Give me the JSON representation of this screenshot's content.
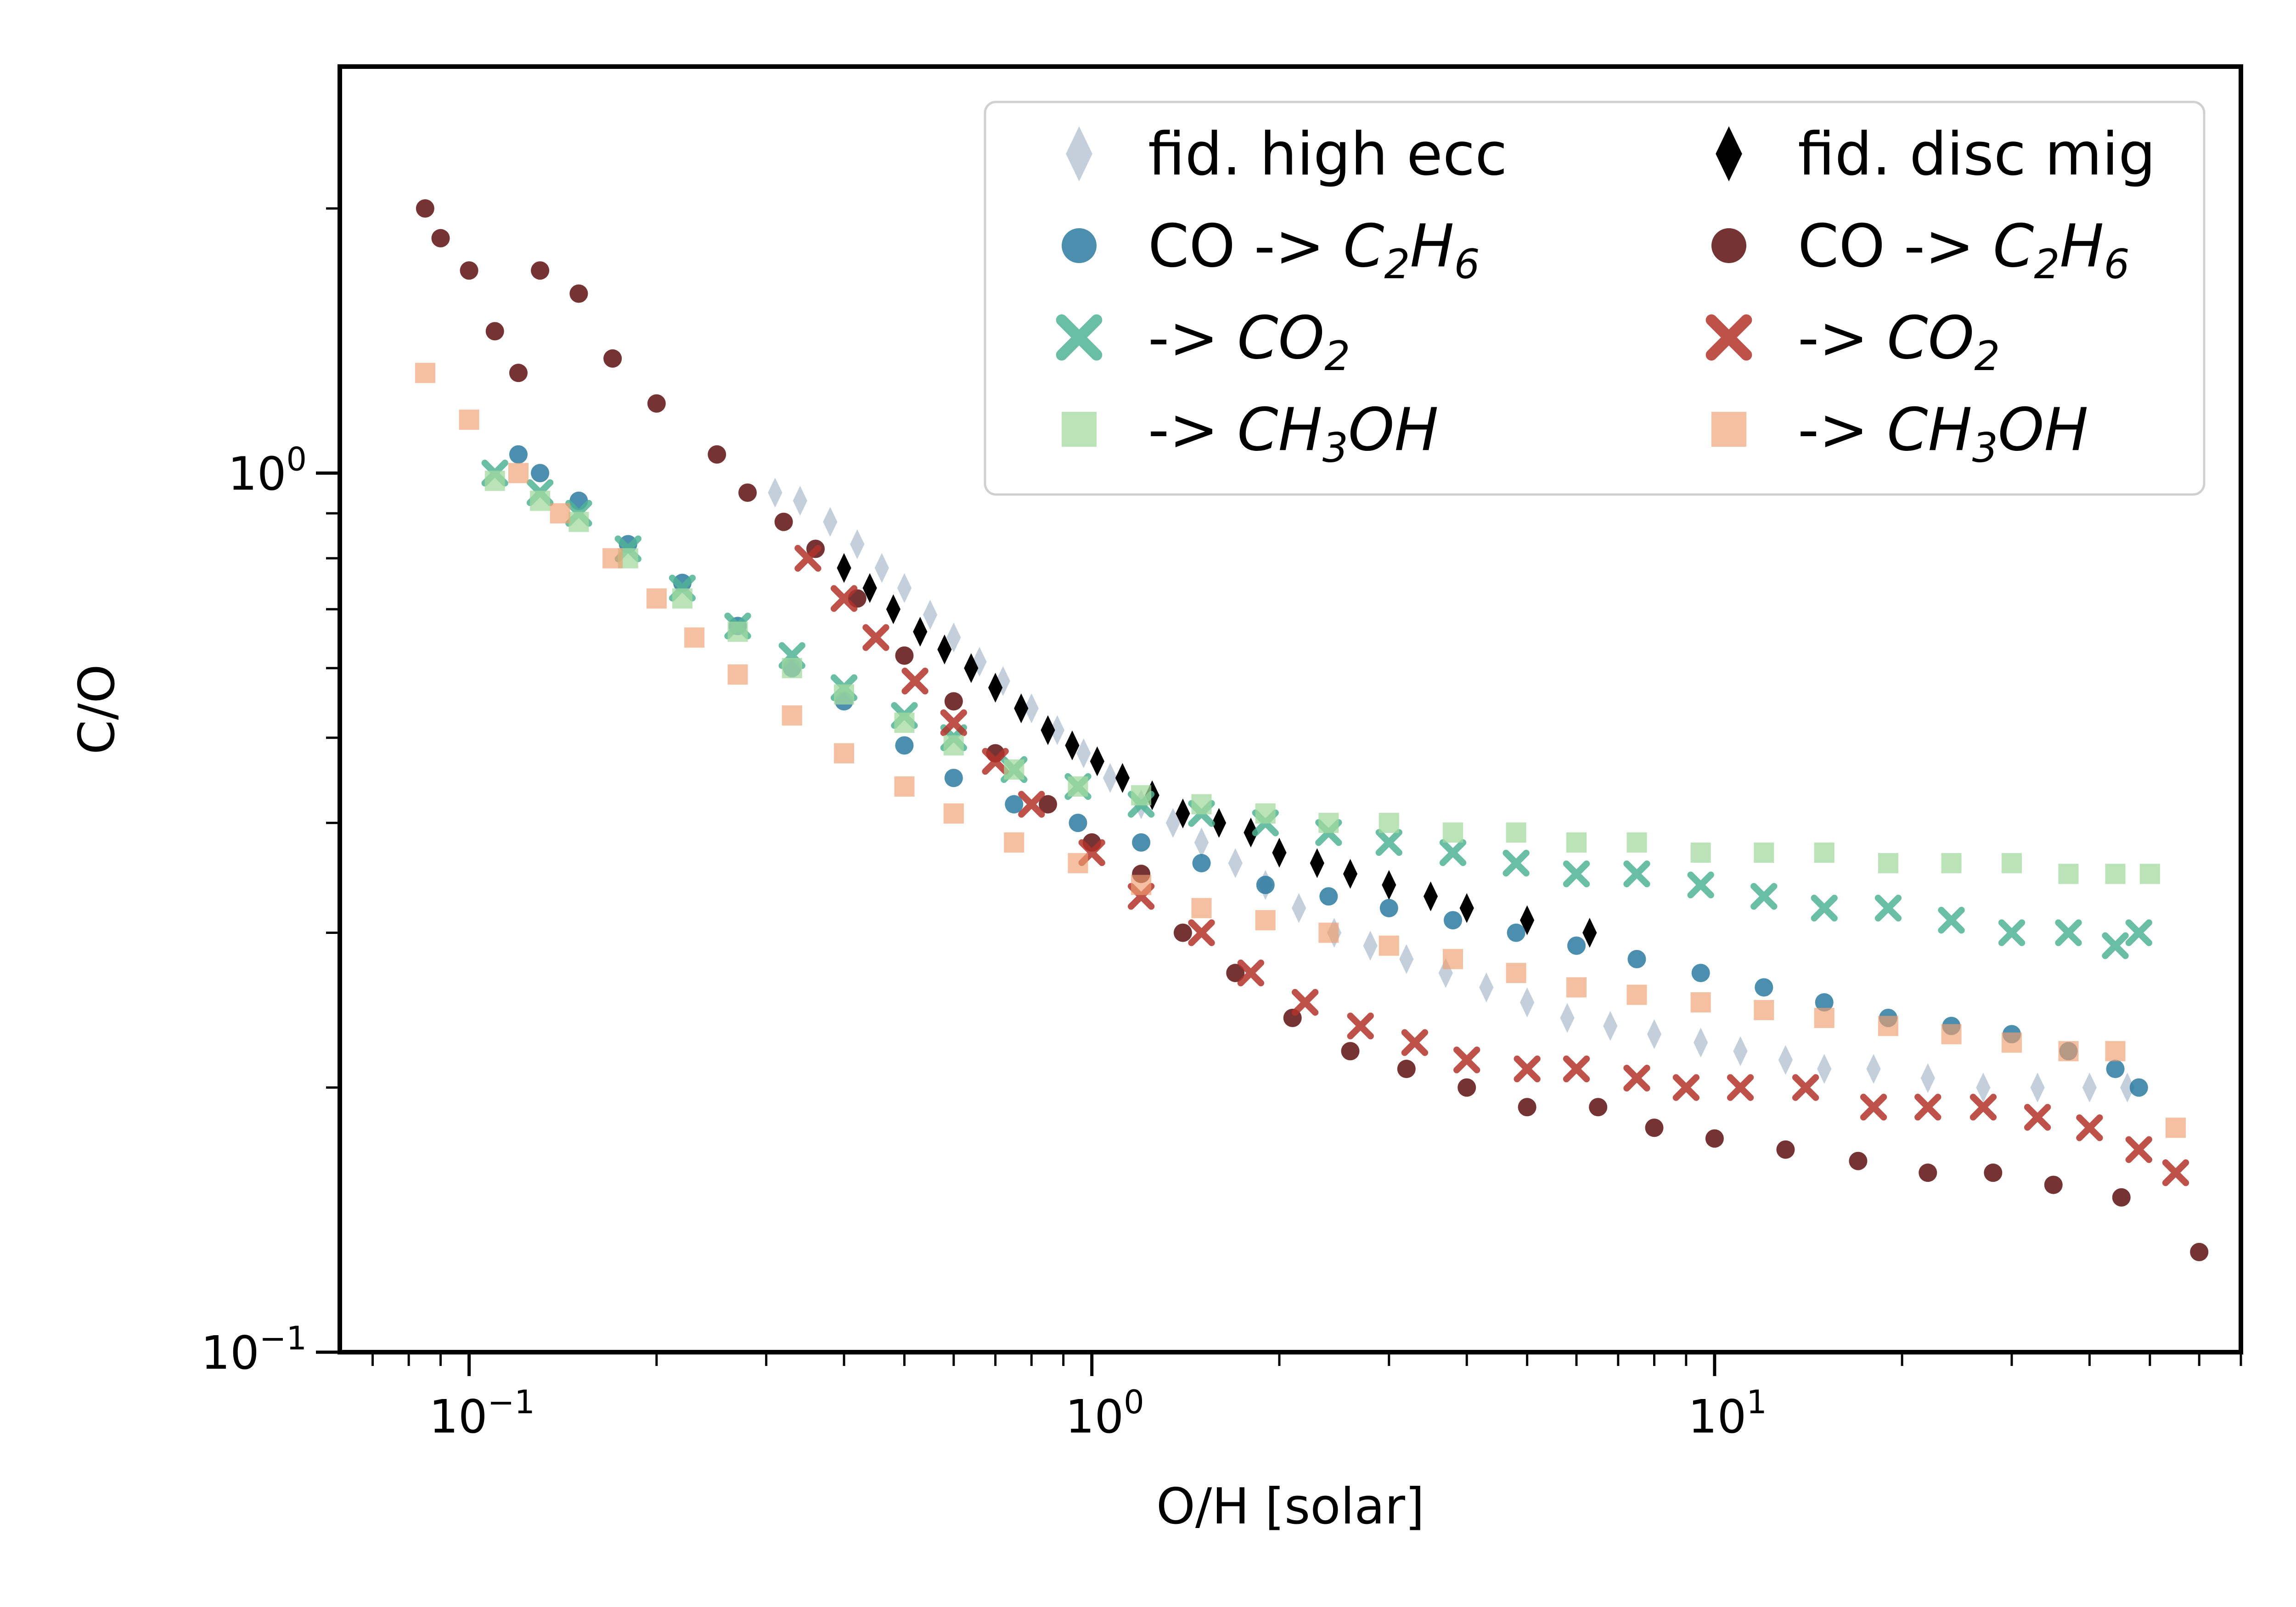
{
  "chart_data": {
    "type": "scatter",
    "title": "",
    "xlabel": "O/H [solar]",
    "ylabel": "C/O",
    "x_scale": "log",
    "y_scale": "log",
    "xlim": [
      0.062,
      70
    ],
    "ylim": [
      0.1,
      2.9
    ],
    "x_ticks": [
      {
        "base": "10",
        "exp": "−1",
        "value": 0.1
      },
      {
        "base": "10",
        "exp": "0",
        "value": 1
      },
      {
        "base": "10",
        "exp": "1",
        "value": 10
      }
    ],
    "y_ticks": [
      {
        "base": "10",
        "exp": "−1",
        "value": 0.1
      },
      {
        "base": "10",
        "exp": "0",
        "value": 1
      }
    ],
    "grid": false,
    "legend_position": "top-right",
    "legend_columns": 2,
    "series": [
      {
        "name": "fid. high ecc",
        "legend_main": "fid. high ecc",
        "legend_italic": "",
        "legend_sub": "",
        "legend_tail": "",
        "marker": "thin_diamond",
        "color": "#c3cfda",
        "opacity": 1,
        "points": [
          [
            0.31,
            0.95
          ],
          [
            0.34,
            0.93
          ],
          [
            0.38,
            0.88
          ],
          [
            0.42,
            0.83
          ],
          [
            0.46,
            0.78
          ],
          [
            0.5,
            0.74
          ],
          [
            0.55,
            0.69
          ],
          [
            0.6,
            0.65
          ],
          [
            0.66,
            0.61
          ],
          [
            0.72,
            0.58
          ],
          [
            0.8,
            0.54
          ],
          [
            0.88,
            0.51
          ],
          [
            0.97,
            0.48
          ],
          [
            1.07,
            0.45
          ],
          [
            1.2,
            0.42
          ],
          [
            1.35,
            0.4
          ],
          [
            1.5,
            0.38
          ],
          [
            1.7,
            0.36
          ],
          [
            1.9,
            0.34
          ],
          [
            2.15,
            0.32
          ],
          [
            2.45,
            0.3
          ],
          [
            2.8,
            0.29
          ],
          [
            3.2,
            0.28
          ],
          [
            3.7,
            0.27
          ],
          [
            4.3,
            0.26
          ],
          [
            5.0,
            0.25
          ],
          [
            5.8,
            0.24
          ],
          [
            6.8,
            0.235
          ],
          [
            8.0,
            0.23
          ],
          [
            9.5,
            0.225
          ],
          [
            11.0,
            0.22
          ],
          [
            13.0,
            0.215
          ],
          [
            15.0,
            0.21
          ],
          [
            18.0,
            0.21
          ],
          [
            22.0,
            0.205
          ],
          [
            27.0,
            0.2
          ],
          [
            33.0,
            0.2
          ],
          [
            40.0,
            0.2
          ],
          [
            46.0,
            0.2
          ]
        ]
      },
      {
        "name": "fid. disc mig",
        "legend_main": "fid. disc mig",
        "legend_italic": "",
        "legend_sub": "",
        "legend_tail": "",
        "marker": "thin_diamond",
        "color": "#000000",
        "opacity": 1,
        "points": [
          [
            0.4,
            0.78
          ],
          [
            0.44,
            0.74
          ],
          [
            0.48,
            0.7
          ],
          [
            0.53,
            0.66
          ],
          [
            0.58,
            0.63
          ],
          [
            0.64,
            0.6
          ],
          [
            0.7,
            0.57
          ],
          [
            0.77,
            0.54
          ],
          [
            0.85,
            0.51
          ],
          [
            0.93,
            0.49
          ],
          [
            1.02,
            0.47
          ],
          [
            1.12,
            0.45
          ],
          [
            1.25,
            0.43
          ],
          [
            1.4,
            0.41
          ],
          [
            1.6,
            0.4
          ],
          [
            1.8,
            0.39
          ],
          [
            2.0,
            0.37
          ],
          [
            2.3,
            0.36
          ],
          [
            2.6,
            0.35
          ],
          [
            3.0,
            0.34
          ],
          [
            3.5,
            0.33
          ],
          [
            4.0,
            0.32
          ],
          [
            5.0,
            0.31
          ],
          [
            6.3,
            0.3
          ]
        ]
      },
      {
        "name": "CO -> C2H6",
        "legend_main": "CO -> ",
        "legend_italic": "C",
        "legend_sub": "2",
        "legend_tail": "H6",
        "marker": "circle",
        "color": "#2b7aa0",
        "opacity": 0.85,
        "points": [
          [
            0.12,
            1.05
          ],
          [
            0.13,
            1.0
          ],
          [
            0.15,
            0.93
          ],
          [
            0.18,
            0.83
          ],
          [
            0.22,
            0.75
          ],
          [
            0.27,
            0.67
          ],
          [
            0.33,
            0.6
          ],
          [
            0.4,
            0.55
          ],
          [
            0.5,
            0.49
          ],
          [
            0.6,
            0.45
          ],
          [
            0.75,
            0.42
          ],
          [
            0.95,
            0.4
          ],
          [
            1.2,
            0.38
          ],
          [
            1.5,
            0.36
          ],
          [
            1.9,
            0.34
          ],
          [
            2.4,
            0.33
          ],
          [
            3.0,
            0.32
          ],
          [
            3.8,
            0.31
          ],
          [
            4.8,
            0.3
          ],
          [
            6.0,
            0.29
          ],
          [
            7.5,
            0.28
          ],
          [
            9.5,
            0.27
          ],
          [
            12.0,
            0.26
          ],
          [
            15.0,
            0.25
          ],
          [
            19.0,
            0.24
          ],
          [
            24.0,
            0.235
          ],
          [
            30.0,
            0.23
          ],
          [
            37.0,
            0.22
          ],
          [
            44.0,
            0.21
          ],
          [
            48.0,
            0.2
          ]
        ]
      },
      {
        "name": "CO -> C2H6 (disc mig)",
        "legend_main": "CO -> ",
        "legend_italic": "C",
        "legend_sub": "2",
        "legend_tail": "H6",
        "marker": "circle",
        "color": "#5e0f0f",
        "opacity": 0.85,
        "points": [
          [
            0.085,
            2.0
          ],
          [
            0.09,
            1.85
          ],
          [
            0.1,
            1.7
          ],
          [
            0.11,
            1.45
          ],
          [
            0.12,
            1.3
          ],
          [
            0.13,
            1.7
          ],
          [
            0.15,
            1.6
          ],
          [
            0.17,
            1.35
          ],
          [
            0.2,
            1.2
          ],
          [
            0.25,
            1.05
          ],
          [
            0.28,
            0.95
          ],
          [
            0.32,
            0.88
          ],
          [
            0.36,
            0.82
          ],
          [
            0.42,
            0.72
          ],
          [
            0.5,
            0.62
          ],
          [
            0.6,
            0.55
          ],
          [
            0.7,
            0.48
          ],
          [
            0.85,
            0.42
          ],
          [
            1.0,
            0.38
          ],
          [
            1.2,
            0.35
          ],
          [
            1.4,
            0.3
          ],
          [
            1.7,
            0.27
          ],
          [
            2.1,
            0.24
          ],
          [
            2.6,
            0.22
          ],
          [
            3.2,
            0.21
          ],
          [
            4.0,
            0.2
          ],
          [
            5.0,
            0.19
          ],
          [
            6.5,
            0.19
          ],
          [
            8.0,
            0.18
          ],
          [
            10.0,
            0.175
          ],
          [
            13.0,
            0.17
          ],
          [
            17.0,
            0.165
          ],
          [
            22.0,
            0.16
          ],
          [
            28.0,
            0.16
          ],
          [
            35.0,
            0.155
          ],
          [
            45.0,
            0.15
          ],
          [
            60.0,
            0.13
          ]
        ]
      },
      {
        "name": "-> CO2",
        "legend_main": "-> ",
        "legend_italic": "CO",
        "legend_sub": "2",
        "legend_tail": "",
        "marker": "x",
        "color": "#4fb394",
        "opacity": 0.85,
        "points": [
          [
            0.11,
            1.0
          ],
          [
            0.13,
            0.95
          ],
          [
            0.15,
            0.9
          ],
          [
            0.18,
            0.82
          ],
          [
            0.22,
            0.74
          ],
          [
            0.27,
            0.67
          ],
          [
            0.33,
            0.62
          ],
          [
            0.4,
            0.57
          ],
          [
            0.5,
            0.53
          ],
          [
            0.6,
            0.5
          ],
          [
            0.75,
            0.46
          ],
          [
            0.95,
            0.44
          ],
          [
            1.2,
            0.42
          ],
          [
            1.5,
            0.41
          ],
          [
            1.9,
            0.4
          ],
          [
            2.4,
            0.39
          ],
          [
            3.0,
            0.38
          ],
          [
            3.8,
            0.37
          ],
          [
            4.8,
            0.36
          ],
          [
            6.0,
            0.35
          ],
          [
            7.5,
            0.35
          ],
          [
            9.5,
            0.34
          ],
          [
            12.0,
            0.33
          ],
          [
            15.0,
            0.32
          ],
          [
            19.0,
            0.32
          ],
          [
            24.0,
            0.31
          ],
          [
            30.0,
            0.3
          ],
          [
            37.0,
            0.3
          ],
          [
            44.0,
            0.29
          ],
          [
            48.0,
            0.3
          ]
        ]
      },
      {
        "name": "-> CO2 (disc mig)",
        "legend_main": "-> ",
        "legend_italic": "CO",
        "legend_sub": "2",
        "legend_tail": "",
        "marker": "x",
        "color": "#b3342b",
        "opacity": 0.85,
        "points": [
          [
            0.35,
            0.8
          ],
          [
            0.4,
            0.72
          ],
          [
            0.45,
            0.65
          ],
          [
            0.52,
            0.58
          ],
          [
            0.6,
            0.52
          ],
          [
            0.7,
            0.47
          ],
          [
            0.8,
            0.42
          ],
          [
            1.0,
            0.37
          ],
          [
            1.2,
            0.33
          ],
          [
            1.5,
            0.3
          ],
          [
            1.8,
            0.27
          ],
          [
            2.2,
            0.25
          ],
          [
            2.7,
            0.235
          ],
          [
            3.3,
            0.225
          ],
          [
            4.0,
            0.215
          ],
          [
            5.0,
            0.21
          ],
          [
            6.0,
            0.21
          ],
          [
            7.5,
            0.205
          ],
          [
            9.0,
            0.2
          ],
          [
            11.0,
            0.2
          ],
          [
            14.0,
            0.2
          ],
          [
            18.0,
            0.19
          ],
          [
            22.0,
            0.19
          ],
          [
            27.0,
            0.19
          ],
          [
            33.0,
            0.185
          ],
          [
            40.0,
            0.18
          ],
          [
            48.0,
            0.17
          ],
          [
            55.0,
            0.16
          ]
        ]
      },
      {
        "name": "-> CH3OH",
        "legend_main": "-> ",
        "legend_italic": "CH",
        "legend_sub": "3",
        "legend_tail": "OH",
        "marker": "square",
        "color": "#a3d9a0",
        "opacity": 0.75,
        "points": [
          [
            0.11,
            0.98
          ],
          [
            0.13,
            0.93
          ],
          [
            0.15,
            0.88
          ],
          [
            0.18,
            0.8
          ],
          [
            0.22,
            0.72
          ],
          [
            0.27,
            0.66
          ],
          [
            0.33,
            0.6
          ],
          [
            0.4,
            0.56
          ],
          [
            0.5,
            0.52
          ],
          [
            0.6,
            0.49
          ],
          [
            0.75,
            0.46
          ],
          [
            0.95,
            0.44
          ],
          [
            1.2,
            0.43
          ],
          [
            1.5,
            0.42
          ],
          [
            1.9,
            0.41
          ],
          [
            2.4,
            0.4
          ],
          [
            3.0,
            0.4
          ],
          [
            3.8,
            0.39
          ],
          [
            4.8,
            0.39
          ],
          [
            6.0,
            0.38
          ],
          [
            7.5,
            0.38
          ],
          [
            9.5,
            0.37
          ],
          [
            12.0,
            0.37
          ],
          [
            15.0,
            0.37
          ],
          [
            19.0,
            0.36
          ],
          [
            24.0,
            0.36
          ],
          [
            30.0,
            0.36
          ],
          [
            37.0,
            0.35
          ],
          [
            44.0,
            0.35
          ],
          [
            50.0,
            0.35
          ]
        ]
      },
      {
        "name": "-> CH3OH (disc mig)",
        "legend_main": "-> ",
        "legend_italic": "CH",
        "legend_sub": "3",
        "legend_tail": "OH",
        "marker": "square",
        "color": "#ef9e6f",
        "opacity": 0.65,
        "points": [
          [
            0.085,
            1.3
          ],
          [
            0.1,
            1.15
          ],
          [
            0.12,
            1.0
          ],
          [
            0.14,
            0.9
          ],
          [
            0.17,
            0.8
          ],
          [
            0.2,
            0.72
          ],
          [
            0.23,
            0.65
          ],
          [
            0.27,
            0.59
          ],
          [
            0.33,
            0.53
          ],
          [
            0.4,
            0.48
          ],
          [
            0.5,
            0.44
          ],
          [
            0.6,
            0.41
          ],
          [
            0.75,
            0.38
          ],
          [
            0.95,
            0.36
          ],
          [
            1.2,
            0.34
          ],
          [
            1.5,
            0.32
          ],
          [
            1.9,
            0.31
          ],
          [
            2.4,
            0.3
          ],
          [
            3.0,
            0.29
          ],
          [
            3.8,
            0.28
          ],
          [
            4.8,
            0.27
          ],
          [
            6.0,
            0.26
          ],
          [
            7.5,
            0.255
          ],
          [
            9.5,
            0.25
          ],
          [
            12.0,
            0.245
          ],
          [
            15.0,
            0.24
          ],
          [
            19.0,
            0.235
          ],
          [
            24.0,
            0.23
          ],
          [
            30.0,
            0.225
          ],
          [
            37.0,
            0.22
          ],
          [
            44.0,
            0.22
          ],
          [
            55.0,
            0.18
          ]
        ]
      }
    ]
  }
}
